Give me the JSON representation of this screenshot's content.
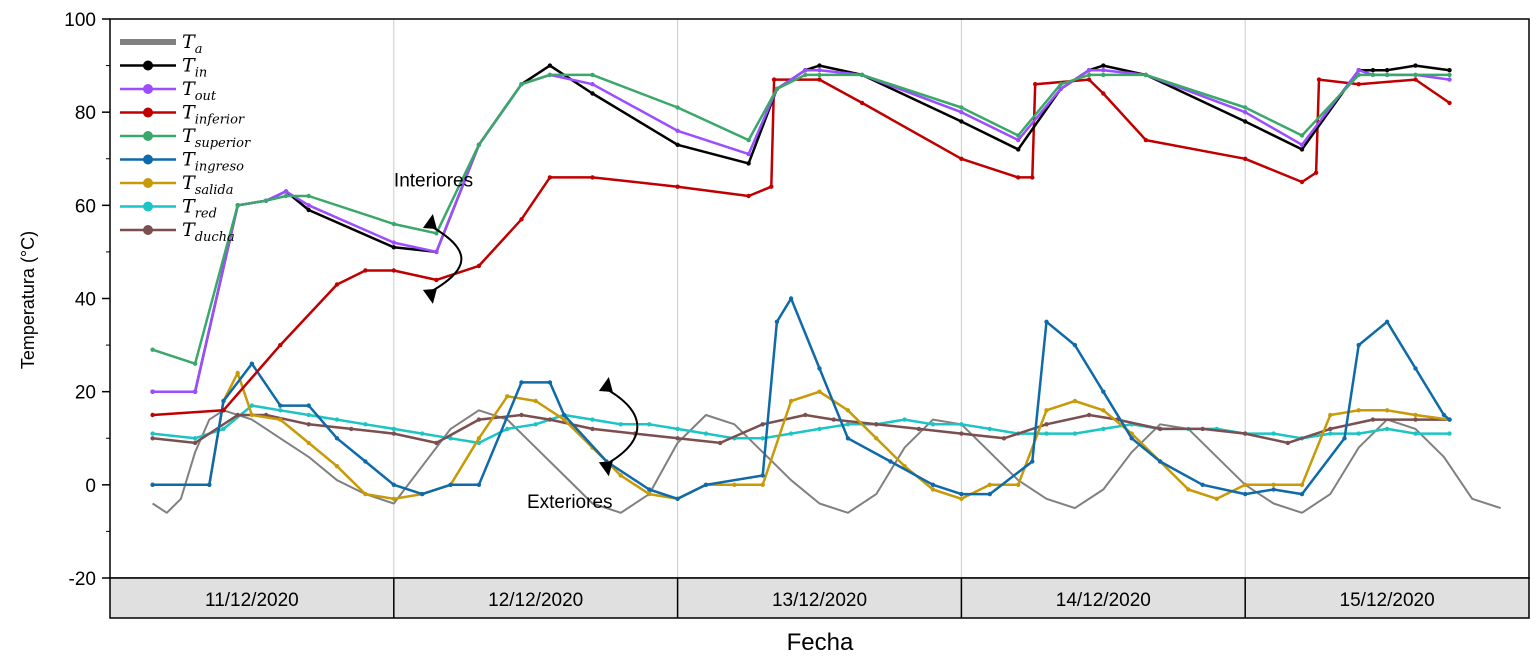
{
  "chart_data": {
    "type": "line",
    "xlabel": "Fecha",
    "ylabel": "Temperatura (°C)",
    "ylim": [
      -20,
      100
    ],
    "yticks": [
      "-20",
      "0",
      "20",
      "40",
      "60",
      "80",
      "100"
    ],
    "xlim": [
      0,
      5
    ],
    "categories": [
      "11/12/2020",
      "12/12/2020",
      "13/12/2020",
      "14/12/2020",
      "15/12/2020"
    ],
    "grid": "vertical lines at day boundaries",
    "legend_position": "top-left",
    "annotations": [
      {
        "text": "Interiores",
        "x": 1.14,
        "y": 64
      },
      {
        "text": "Exteriores",
        "x": 1.62,
        "y": -5
      }
    ],
    "series": [
      {
        "name": "T",
        "sub": "a",
        "color": "#808080",
        "x": [
          0.15,
          0.2,
          0.25,
          0.3,
          0.35,
          0.4,
          0.5,
          0.6,
          0.7,
          0.8,
          0.9,
          1.0,
          1.1,
          1.2,
          1.3,
          1.4,
          1.5,
          1.6,
          1.7,
          1.8,
          1.9,
          2.0,
          2.1,
          2.2,
          2.3,
          2.4,
          2.5,
          2.6,
          2.7,
          2.8,
          2.9,
          3.0,
          3.1,
          3.2,
          3.3,
          3.4,
          3.5,
          3.6,
          3.7,
          3.8,
          3.9,
          4.0,
          4.1,
          4.2,
          4.3,
          4.4,
          4.5,
          4.6,
          4.7,
          4.8,
          4.9
        ],
        "y": [
          -4,
          -6,
          -3,
          7,
          14,
          16,
          14,
          10,
          6,
          1,
          -2,
          -4,
          4,
          12,
          16,
          14,
          8,
          2,
          -4,
          -6,
          -2,
          9,
          15,
          13,
          7,
          1,
          -4,
          -6,
          -2,
          8,
          14,
          13,
          7,
          1,
          -3,
          -5,
          -1,
          7,
          13,
          12,
          6,
          0,
          -4,
          -6,
          -2,
          8,
          14,
          12,
          6,
          -3,
          -5
        ]
      },
      {
        "name": "T",
        "sub": "in",
        "color": "#000000",
        "x": [
          0.15,
          0.3,
          0.45,
          0.55,
          0.62,
          0.7,
          1.0,
          1.15,
          1.3,
          1.45,
          1.55,
          1.7,
          2.0,
          2.25,
          2.35,
          2.45,
          2.5,
          2.65,
          3.0,
          3.2,
          3.35,
          3.45,
          3.5,
          3.65,
          4.0,
          4.2,
          4.4,
          4.45,
          4.5,
          4.6,
          4.72
        ],
        "y": [
          20,
          20,
          60,
          61,
          63,
          59,
          51,
          50,
          73,
          86,
          90,
          84,
          73,
          69,
          85,
          89,
          90,
          88,
          78,
          72,
          85,
          89,
          90,
          88,
          78,
          72,
          89,
          89,
          89,
          90,
          89
        ]
      },
      {
        "name": "T",
        "sub": "out",
        "color": "#9b4dff",
        "x": [
          0.15,
          0.3,
          0.45,
          0.55,
          0.62,
          0.7,
          1.0,
          1.15,
          1.3,
          1.45,
          1.55,
          1.7,
          2.0,
          2.25,
          2.35,
          2.45,
          2.5,
          2.65,
          3.0,
          3.2,
          3.35,
          3.45,
          3.5,
          3.65,
          4.0,
          4.2,
          4.4,
          4.45,
          4.5,
          4.6,
          4.72
        ],
        "y": [
          20,
          20,
          60,
          61,
          63,
          60,
          52,
          50,
          73,
          86,
          88,
          86,
          76,
          71,
          85,
          89,
          89,
          88,
          80,
          74,
          85,
          89,
          89,
          88,
          80,
          73,
          89,
          88,
          88,
          88,
          87
        ]
      },
      {
        "name": "T",
        "sub": "inferior",
        "color": "#c00000",
        "x": [
          0.15,
          0.4,
          0.6,
          0.8,
          0.9,
          1.0,
          1.15,
          1.3,
          1.45,
          1.55,
          1.7,
          2.0,
          2.25,
          2.33,
          2.34,
          2.5,
          2.65,
          3.0,
          3.2,
          3.25,
          3.26,
          3.45,
          3.5,
          3.65,
          4.0,
          4.2,
          4.25,
          4.26,
          4.4,
          4.6,
          4.72
        ],
        "y": [
          15,
          16,
          30,
          43,
          46,
          46,
          44,
          47,
          57,
          66,
          66,
          64,
          62,
          64,
          87,
          87,
          82,
          70,
          66,
          66,
          86,
          87,
          84,
          74,
          70,
          65,
          67,
          87,
          86,
          87,
          82
        ]
      },
      {
        "name": "T",
        "sub": "superior",
        "color": "#3aa868",
        "x": [
          0.15,
          0.3,
          0.45,
          0.55,
          0.62,
          0.7,
          1.0,
          1.15,
          1.3,
          1.45,
          1.55,
          1.7,
          2.0,
          2.25,
          2.35,
          2.45,
          2.5,
          2.65,
          3.0,
          3.2,
          3.35,
          3.45,
          3.5,
          3.65,
          4.0,
          4.2,
          4.4,
          4.45,
          4.5,
          4.6,
          4.72
        ],
        "y": [
          29,
          26,
          60,
          61,
          62,
          62,
          56,
          54,
          73,
          86,
          88,
          88,
          81,
          74,
          85,
          88,
          88,
          88,
          81,
          75,
          86,
          88,
          88,
          88,
          81,
          75,
          88,
          88,
          88,
          88,
          88
        ]
      },
      {
        "name": "T",
        "sub": "ingreso",
        "color": "#0e6aa8",
        "x": [
          0.15,
          0.35,
          0.4,
          0.5,
          0.6,
          0.7,
          0.8,
          0.9,
          1.0,
          1.1,
          1.2,
          1.3,
          1.45,
          1.55,
          1.6,
          1.75,
          1.9,
          2.0,
          2.1,
          2.3,
          2.35,
          2.4,
          2.5,
          2.6,
          2.75,
          2.9,
          3.0,
          3.1,
          3.25,
          3.3,
          3.4,
          3.5,
          3.6,
          3.7,
          3.85,
          4.0,
          4.1,
          4.2,
          4.35,
          4.4,
          4.5,
          4.6,
          4.7,
          4.72
        ],
        "y": [
          0,
          0,
          18,
          26,
          17,
          17,
          10,
          5,
          0,
          -2,
          0,
          0,
          22,
          22,
          15,
          5,
          -1,
          -3,
          0,
          2,
          35,
          40,
          25,
          10,
          5,
          0,
          -2,
          -2,
          5,
          35,
          30,
          20,
          10,
          5,
          0,
          -2,
          -1,
          -2,
          10,
          30,
          35,
          25,
          15,
          14
        ]
      },
      {
        "name": "T",
        "sub": "salida",
        "color": "#c89a08",
        "x": [
          0.15,
          0.35,
          0.4,
          0.45,
          0.5,
          0.6,
          0.7,
          0.8,
          0.9,
          1.0,
          1.1,
          1.2,
          1.3,
          1.4,
          1.5,
          1.6,
          1.7,
          1.8,
          1.9,
          2.0,
          2.1,
          2.2,
          2.3,
          2.4,
          2.5,
          2.6,
          2.7,
          2.8,
          2.9,
          3.0,
          3.1,
          3.2,
          3.3,
          3.4,
          3.5,
          3.6,
          3.7,
          3.8,
          3.9,
          4.0,
          4.1,
          4.2,
          4.3,
          4.4,
          4.5,
          4.6,
          4.72
        ],
        "y": [
          0,
          0,
          18,
          24,
          15,
          14,
          9,
          4,
          -2,
          -3,
          -2,
          0,
          10,
          19,
          18,
          14,
          8,
          2,
          -2,
          -3,
          0,
          0,
          0,
          18,
          20,
          16,
          10,
          4,
          -1,
          -3,
          0,
          0,
          16,
          18,
          16,
          11,
          5,
          -1,
          -3,
          0,
          0,
          0,
          15,
          16,
          16,
          15,
          14
        ]
      },
      {
        "name": "T",
        "sub": "red",
        "color": "#1cc4c4",
        "x": [
          0.15,
          0.3,
          0.4,
          0.5,
          0.6,
          0.7,
          0.8,
          0.9,
          1.0,
          1.1,
          1.2,
          1.3,
          1.4,
          1.5,
          1.6,
          1.7,
          1.8,
          1.9,
          2.0,
          2.1,
          2.2,
          2.3,
          2.4,
          2.5,
          2.6,
          2.7,
          2.8,
          2.9,
          3.0,
          3.1,
          3.2,
          3.3,
          3.4,
          3.5,
          3.6,
          3.7,
          3.8,
          3.9,
          4.0,
          4.1,
          4.2,
          4.3,
          4.4,
          4.5,
          4.6,
          4.72
        ],
        "y": [
          11,
          10,
          12,
          17,
          16,
          15,
          14,
          13,
          12,
          11,
          10,
          9,
          12,
          13,
          15,
          14,
          13,
          13,
          12,
          11,
          10,
          10,
          11,
          12,
          13,
          13,
          14,
          13,
          13,
          12,
          11,
          11,
          11,
          12,
          13,
          12,
          12,
          12,
          11,
          11,
          10,
          11,
          11,
          12,
          11,
          11
        ]
      },
      {
        "name": "T",
        "sub": "ducha",
        "color": "#7b4f4f",
        "x": [
          0.15,
          0.3,
          0.45,
          0.55,
          0.7,
          0.85,
          1.0,
          1.15,
          1.3,
          1.45,
          1.55,
          1.7,
          1.85,
          2.0,
          2.15,
          2.3,
          2.45,
          2.55,
          2.7,
          2.85,
          3.0,
          3.15,
          3.3,
          3.45,
          3.55,
          3.7,
          3.85,
          4.0,
          4.15,
          4.3,
          4.45,
          4.6,
          4.72
        ],
        "y": [
          10,
          9,
          15,
          15,
          13,
          12,
          11,
          9,
          14,
          15,
          14,
          12,
          11,
          10,
          9,
          13,
          15,
          14,
          13,
          12,
          11,
          10,
          13,
          15,
          14,
          12,
          12,
          11,
          9,
          12,
          14,
          14,
          14
        ]
      }
    ]
  }
}
